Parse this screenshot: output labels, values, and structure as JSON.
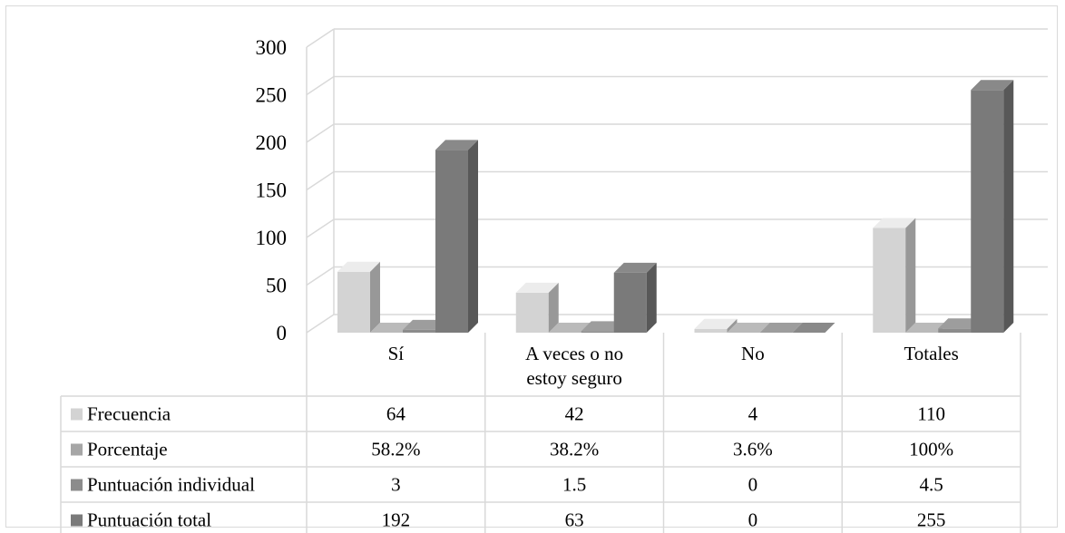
{
  "chart_data": {
    "type": "bar",
    "categories": [
      "Sí",
      "A veces o no estoy seguro",
      "No",
      "Totales"
    ],
    "category_lines": [
      [
        "Sí"
      ],
      [
        "A veces o no",
        "estoy seguro"
      ],
      [
        "No"
      ],
      [
        "Totales"
      ]
    ],
    "series": [
      {
        "name": "Frecuencia",
        "values": [
          64,
          42,
          4,
          110
        ],
        "display": [
          "64",
          "42",
          "4",
          "110"
        ],
        "color": "#d3d3d3"
      },
      {
        "name": "Porcentaje",
        "values": [
          58.2,
          38.2,
          3.6,
          100
        ],
        "display": [
          "58.2%",
          "38.2%",
          "3.6%",
          "100%"
        ],
        "color": "#a6a6a6"
      },
      {
        "name": "Puntuación individual",
        "values": [
          3,
          1.5,
          0,
          4.5
        ],
        "display": [
          "3",
          "1.5",
          "0",
          "4.5"
        ],
        "color": "#8c8c8c"
      },
      {
        "name": "Puntuación total",
        "values": [
          192,
          63,
          0,
          255
        ],
        "display": [
          "192",
          "63",
          "0",
          "255"
        ],
        "color": "#7a7a7a"
      }
    ],
    "plotted_values": [
      [
        64,
        42,
        4,
        110
      ],
      [
        0,
        0,
        0,
        0
      ],
      [
        3,
        1.5,
        0,
        4.5
      ],
      [
        192,
        63,
        0,
        255
      ]
    ],
    "yticks": [
      0,
      50,
      100,
      150,
      200,
      250,
      300
    ],
    "ylim": [
      0,
      300
    ],
    "style": "3d-column",
    "grid": true,
    "legend": "data-table"
  }
}
